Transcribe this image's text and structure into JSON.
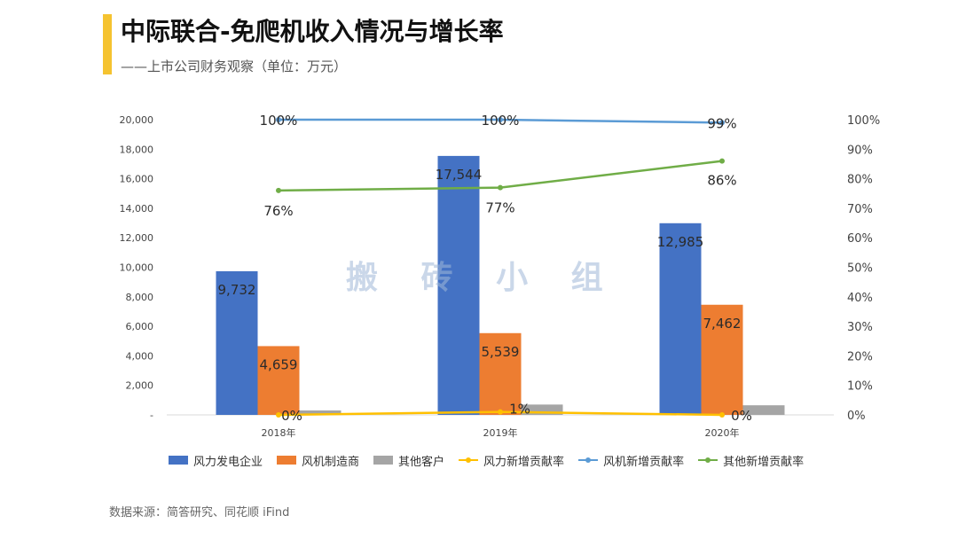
{
  "header": {
    "title": "中际联合-免爬机收入情况与增长率",
    "subtitle": "——上市公司财务观察（单位：万元）"
  },
  "watermark": "搬 砖 小 组",
  "footer": {
    "source": "数据来源：简答研究、同花顺 iFind"
  },
  "colors": {
    "accent": "#f5c330",
    "bar_series_1": "#4472c4",
    "bar_series_2": "#ed7d31",
    "bar_series_3": "#a5a5a5",
    "line_series_1": "#ffc000",
    "line_series_2": "#5b9bd5",
    "line_series_3": "#70ad47"
  },
  "chart_data": {
    "type": "bar",
    "categories": [
      "2018年",
      "2019年",
      "2020年"
    ],
    "bar_series": [
      {
        "name": "风力发电企业",
        "values": [
          9732,
          17544,
          12985
        ],
        "labels": [
          "9,732",
          "17,544",
          "12,985"
        ],
        "color": "#4472c4"
      },
      {
        "name": "风机制造商",
        "values": [
          4659,
          5539,
          7462
        ],
        "labels": [
          "4,659",
          "5,539",
          "7,462"
        ],
        "color": "#ed7d31"
      },
      {
        "name": "其他客户",
        "values": [
          300,
          700,
          650
        ],
        "labels": [
          "",
          "",
          ""
        ],
        "color": "#a5a5a5"
      }
    ],
    "line_series": [
      {
        "name": "风力新增贡献率",
        "values": [
          0,
          1,
          0
        ],
        "labels": [
          "0%",
          "1%",
          "0%"
        ],
        "color": "#ffc000"
      },
      {
        "name": "风机新增贡献率",
        "values": [
          100,
          100,
          99
        ],
        "labels": [
          "100%",
          "100%",
          "99%"
        ],
        "color": "#5b9bd5"
      },
      {
        "name": "其他新增贡献率",
        "values": [
          76,
          77,
          86
        ],
        "labels": [
          "76%",
          "77%",
          "86%"
        ],
        "color": "#70ad47"
      }
    ],
    "y_left": {
      "ylim": [
        0,
        20000
      ],
      "ticks": [
        "-",
        "2,000",
        "4,000",
        "6,000",
        "8,000",
        "10,000",
        "12,000",
        "14,000",
        "16,000",
        "18,000",
        "20,000"
      ]
    },
    "y_right": {
      "ylim": [
        0,
        100
      ],
      "ticks": [
        "0%",
        "10%",
        "20%",
        "30%",
        "40%",
        "50%",
        "60%",
        "70%",
        "80%",
        "90%",
        "100%"
      ]
    },
    "grid": false,
    "legend_position": "bottom"
  }
}
